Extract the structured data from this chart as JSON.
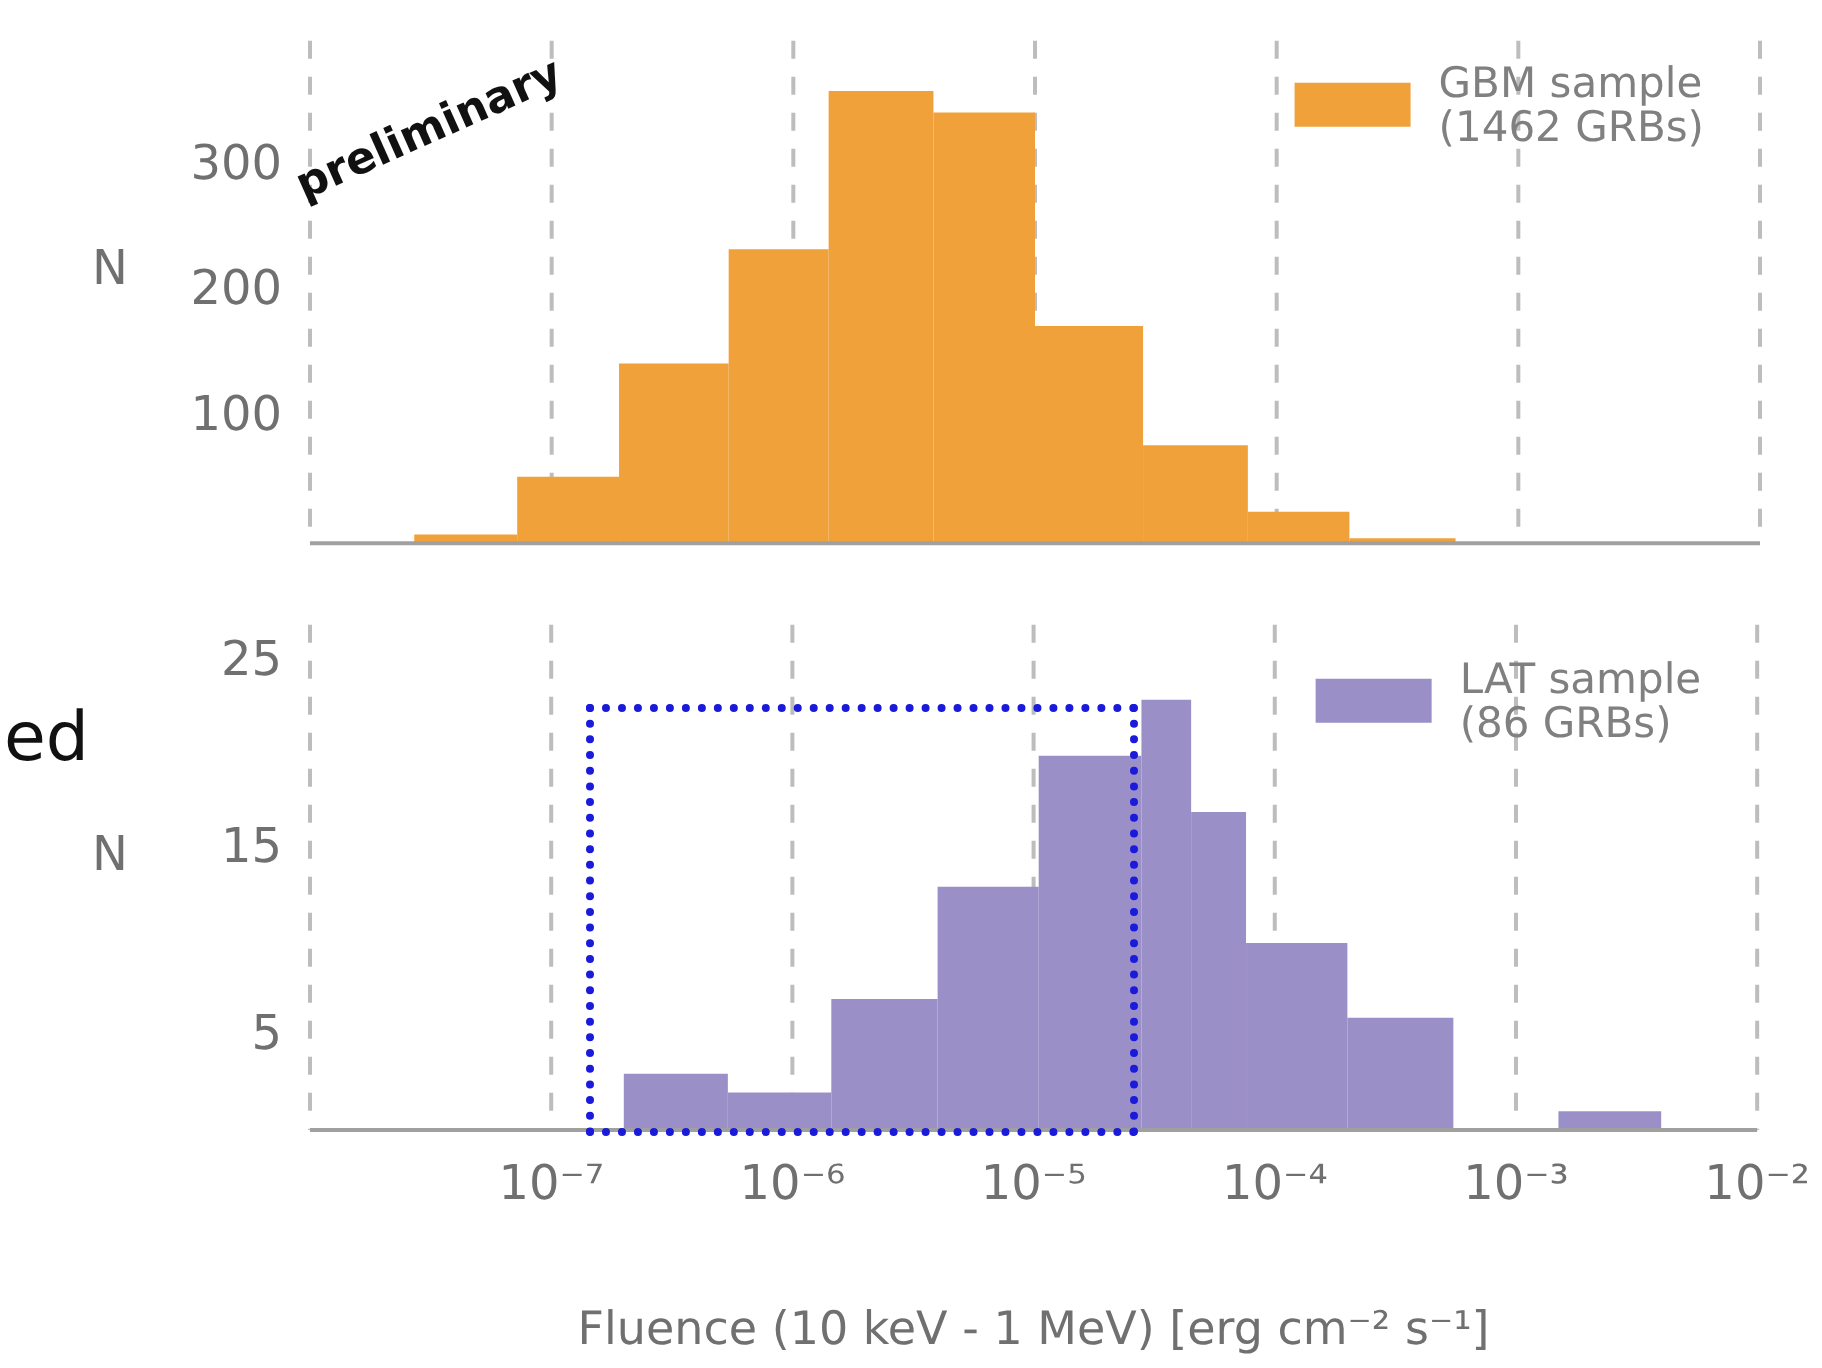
{
  "chart_data": [
    {
      "type": "histogram",
      "ylabel": "N",
      "bins": [
        2.7e-08,
        7.2e-08,
        1.9e-07,
        5.4e-07,
        1.4e-06,
        3.8e-06,
        1e-05,
        2.8e-05,
        7.6e-05,
        0.0002,
        0.00055
      ],
      "series": [
        {
          "name": "GBM sample (1462 GRBs)",
          "color": "#f0a13a",
          "values": [
            7,
            53,
            143,
            234,
            360,
            343,
            173,
            78,
            25,
            4
          ]
        }
      ],
      "xlim": [
        1e-08,
        0.01
      ],
      "xticks": [
        {
          "value": 1e-08,
          "label": null
        },
        {
          "value": 1e-07,
          "label": null
        },
        {
          "value": 1e-06,
          "label": null
        },
        {
          "value": 1e-05,
          "label": null
        },
        {
          "value": 0.0001,
          "label": null
        },
        {
          "value": 0.001,
          "label": null
        },
        {
          "value": 0.01,
          "label": null
        }
      ],
      "ylim": [
        0,
        400
      ],
      "yticks": [
        100,
        200,
        300
      ],
      "log": "x",
      "grid": "x",
      "legend": "top right",
      "tick_labels": "y",
      "annotations": [
        "preliminary"
      ]
    },
    {
      "type": "histogram",
      "ylabel": "N",
      "xlabel": "Fluence (10 keV - 1 MeV) [erg cm⁻² s⁻¹]",
      "bins": [
        2e-07,
        5.4e-07,
        1.45e-06,
        4e-06,
        1.05e-05,
        2.8e-05,
        4.5e-05,
        7.6e-05,
        0.0002,
        0.00055,
        0.0015,
        0.004
      ],
      "series": [
        {
          "name": "LAT sample (86 GRBs)",
          "color": "#9b8fc8",
          "values": [
            3,
            2,
            7,
            13,
            20,
            23,
            17,
            10,
            6,
            0,
            1
          ]
        }
      ],
      "xlim": [
        1e-08,
        0.01
      ],
      "xticks": [
        {
          "value": 1e-08,
          "label": null
        },
        {
          "value": 1e-07,
          "label": "10⁻⁷"
        },
        {
          "value": 1e-06,
          "label": "10⁻⁶"
        },
        {
          "value": 1e-05,
          "label": "10⁻⁵"
        },
        {
          "value": 0.0001,
          "label": "10⁻⁴"
        },
        {
          "value": 0.001,
          "label": "10⁻³"
        },
        {
          "value": 0.01,
          "label": "10⁻²"
        }
      ],
      "ylim": [
        0,
        27
      ],
      "yticks": [
        5,
        15,
        25
      ],
      "log": "x",
      "grid": "x",
      "legend": "top right",
      "annotations": [
        "ed"
      ]
    }
  ]
}
